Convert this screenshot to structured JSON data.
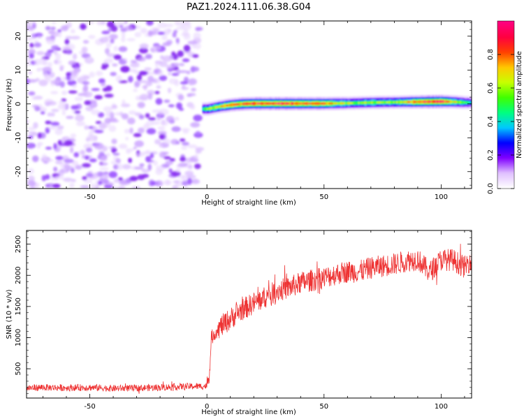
{
  "title": "PAZ1.2024.111.06.38.G04",
  "chart_data": [
    {
      "type": "heatmap",
      "xlabel": "Height of straight line (km)",
      "ylabel": "Frequency (Hz)",
      "xlim": [
        -77,
        113
      ],
      "ylim": [
        -25,
        24.5
      ],
      "xticks": [
        -50,
        0,
        50,
        100
      ],
      "xtick_labels": [
        "-50",
        "0",
        "50",
        "100"
      ],
      "yticks": [
        -20,
        -10,
        0,
        10,
        20
      ],
      "ytick_labels": [
        "-20",
        "-10",
        "0",
        "10",
        "20"
      ],
      "colorbar": {
        "label": "Normalized spectral amplitude",
        "range": [
          0.0,
          1.0
        ],
        "ticks": [
          0.0,
          0.2,
          0.4,
          0.6,
          0.8
        ],
        "tick_labels": [
          "0.0",
          "0.2",
          "0.4",
          "0.6",
          "0.8"
        ],
        "colormap": [
          "#ffffff",
          "#e0c0ff",
          "#8000ff",
          "#0000ff",
          "#00c8ff",
          "#00ff80",
          "#40ff00",
          "#c8ff00",
          "#ffc800",
          "#ff4000",
          "#ff0040",
          "#ff0080"
        ]
      },
      "regions": [
        {
          "name": "noise",
          "x_range": [
            -77,
            -3
          ],
          "y_range": [
            -25,
            24.5
          ],
          "amplitude_range": [
            0.0,
            0.15
          ]
        },
        {
          "name": "signal",
          "x_range": [
            -3,
            113
          ],
          "amplitude_peak": 0.95
        }
      ],
      "signal_ridge": {
        "x": [
          -2,
          0,
          5,
          10,
          15,
          20,
          30,
          40,
          50,
          60,
          70,
          80,
          90,
          100,
          105,
          110,
          113
        ],
        "y": [
          -1.5,
          -1.5,
          -0.8,
          -0.3,
          0.0,
          0.1,
          0.1,
          0.1,
          0.1,
          0.2,
          0.4,
          0.5,
          0.6,
          0.7,
          0.6,
          0.4,
          0.4
        ],
        "amplitude": [
          0.5,
          0.6,
          0.7,
          0.8,
          0.85,
          0.9,
          0.9,
          0.85,
          0.8,
          0.6,
          0.6,
          0.6,
          0.85,
          0.95,
          0.7,
          0.5,
          0.4
        ]
      }
    },
    {
      "type": "line",
      "xlabel": "Height of straight line (km)",
      "ylabel": "SNR (10 * v/v)",
      "xlim": [
        -77,
        113
      ],
      "ylim": [
        30,
        2720
      ],
      "xticks": [
        -50,
        0,
        50,
        100
      ],
      "xtick_labels": [
        "-50",
        "0",
        "50",
        "100"
      ],
      "yticks": [
        500,
        1000,
        1500,
        2000,
        2500
      ],
      "ytick_labels": [
        "500",
        "1000",
        "1500",
        "2000",
        "2500"
      ],
      "color": "#ee3333",
      "series": [
        {
          "x": [
            -77,
            -70,
            -60,
            -50,
            -40,
            -30,
            -20,
            -10,
            -1,
            0,
            1,
            2,
            5,
            10,
            15,
            20,
            25,
            30,
            35,
            40,
            45,
            50,
            55,
            60,
            65,
            70,
            75,
            80,
            85,
            90,
            95,
            100,
            105,
            110,
            113
          ],
          "values": [
            190,
            200,
            195,
            200,
            185,
            190,
            200,
            215,
            220,
            230,
            400,
            1000,
            1150,
            1300,
            1450,
            1550,
            1650,
            1750,
            1800,
            1880,
            1920,
            1960,
            2020,
            2060,
            2060,
            2120,
            2150,
            2180,
            2230,
            2260,
            2050,
            2250,
            2250,
            2130,
            2270
          ]
        }
      ]
    }
  ]
}
